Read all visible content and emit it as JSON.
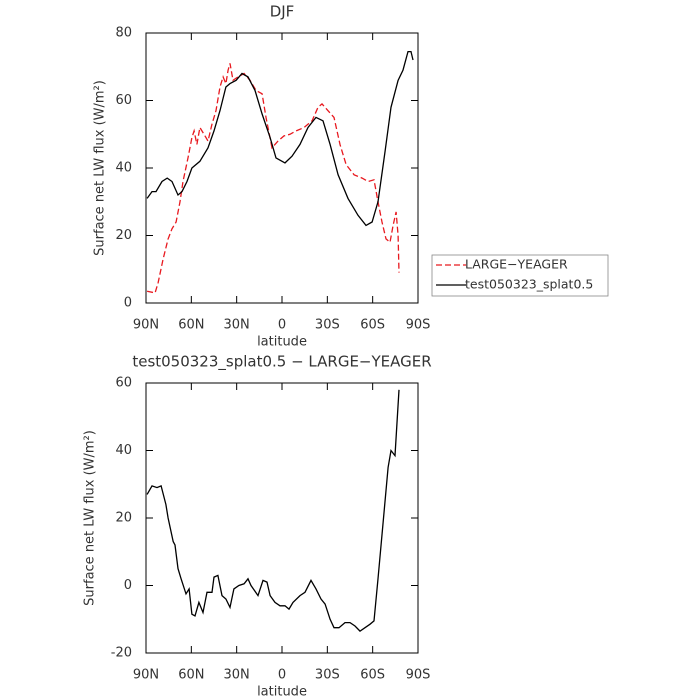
{
  "chart_data": [
    {
      "type": "line",
      "title": "DJF",
      "xlabel": "latitude",
      "ylabel": "Surface net LW flux (W/m²)",
      "xlim": [
        90,
        -90
      ],
      "ylim": [
        0,
        80
      ],
      "xticks": [
        {
          "value": 90,
          "label": "90N"
        },
        {
          "value": 60,
          "label": "60N"
        },
        {
          "value": 30,
          "label": "30N"
        },
        0,
        {
          "value": -30,
          "label": "30S"
        },
        {
          "value": -60,
          "label": "60S"
        },
        {
          "value": -90,
          "label": "90S"
        }
      ],
      "yticks": [
        0,
        20,
        40,
        60,
        80
      ],
      "legend": "right",
      "series": [
        {
          "name": "LARGE−YEAGER",
          "color": "#e8191f",
          "dashed": true,
          "x": [
            89.3,
            84,
            82,
            78.7,
            75.4,
            72.8,
            70.1,
            67.5,
            65.5,
            62.2,
            59.6,
            58.2,
            56.3,
            54.3,
            51.6,
            49,
            46.3,
            43.7,
            41,
            39,
            37.1,
            35.7,
            34.4,
            32.4,
            29.1,
            25.1,
            21.2,
            17.2,
            13.2,
            10.6,
            6.6,
            2.6,
            -1.3,
            -5.3,
            -9.3,
            -14.6,
            -19.9,
            -23.8,
            -26.5,
            -30.4,
            -34.4,
            -38.4,
            -42.4,
            -47.7,
            -53,
            -57,
            -60.9,
            -63.5,
            -66.2,
            -68.8,
            -71.5,
            -73.5,
            -75.5,
            -76.8,
            -77.4
          ],
          "values": [
            3.5,
            3,
            6,
            13,
            19,
            22,
            24,
            30,
            36,
            43,
            49,
            51,
            47,
            52,
            50,
            48,
            53,
            57,
            64,
            67,
            65,
            69,
            71,
            66,
            67,
            68,
            66,
            63,
            62,
            55,
            46,
            48,
            49.5,
            50,
            51,
            52,
            54,
            58,
            59,
            57,
            55,
            47,
            41,
            38,
            37,
            36,
            36.5,
            30,
            24,
            19,
            18,
            23,
            27,
            20,
            9
          ]
        },
        {
          "name": "test050323_splat0.5",
          "color": "#000000",
          "dashed": false,
          "x": [
            89.3,
            86,
            83.4,
            79.4,
            76,
            72.8,
            68.8,
            66.2,
            62.9,
            59.6,
            54.3,
            49,
            45,
            41,
            37.1,
            34.4,
            30.4,
            26.5,
            22.5,
            17.9,
            13.2,
            7.9,
            4,
            -2,
            -6.6,
            -11.9,
            -17.2,
            -22.5,
            -27.1,
            -31.8,
            -37.1,
            -43.7,
            -50.3,
            -55.6,
            -59.6,
            -63.5,
            -68.2,
            -72.1,
            -76.8,
            -80.1,
            -83.4,
            -85.4,
            -86.7
          ],
          "values": [
            31,
            33,
            33,
            36,
            37,
            36,
            32,
            33,
            36,
            40,
            42,
            46,
            51,
            57,
            64,
            65,
            66,
            68,
            67,
            63,
            56,
            49,
            43,
            41.5,
            43.5,
            47,
            52,
            55,
            54,
            47,
            38,
            31,
            26,
            23,
            24,
            30,
            45,
            58,
            66,
            69,
            74.5,
            74.5,
            72
          ]
        }
      ]
    },
    {
      "type": "line",
      "title": "test050323_splat0.5 − LARGE−YEAGER",
      "xlabel": "latitude",
      "ylabel": "Surface net LW flux (W/m²)",
      "xlim": [
        90,
        -90
      ],
      "ylim": [
        -20,
        60
      ],
      "xticks": [
        {
          "value": 90,
          "label": "90N"
        },
        {
          "value": 60,
          "label": "60N"
        },
        {
          "value": 30,
          "label": "30N"
        },
        0,
        {
          "value": -30,
          "label": "30S"
        },
        {
          "value": -60,
          "label": "60S"
        },
        {
          "value": -90,
          "label": "90S"
        }
      ],
      "yticks": [
        -20,
        0,
        20,
        40,
        60
      ],
      "series": [
        {
          "color": "#000000",
          "dashed": false,
          "x": [
            89.3,
            86,
            82.7,
            80,
            76.8,
            75.4,
            72,
            70.8,
            68.8,
            66.8,
            63.5,
            61.5,
            59.6,
            57.6,
            55,
            52.3,
            49.6,
            46.3,
            45,
            42.4,
            39.7,
            37.1,
            34.4,
            31.8,
            28.5,
            25.1,
            22.5,
            20.5,
            15.9,
            12.6,
            9.9,
            7.9,
            4.6,
            1.3,
            -2,
            -4.6,
            -7.3,
            -11.9,
            -15.2,
            -19.2,
            -22.5,
            -25.8,
            -28.5,
            -31.8,
            -34.4,
            -37.7,
            -41.7,
            -45,
            -48.3,
            -51.6,
            -54.9,
            -58.2,
            -60.9,
            -63.5,
            -66.8,
            -70.2,
            -72.1,
            -74.8,
            -77.4
          ],
          "values": [
            27,
            29.5,
            29,
            29.5,
            24,
            20,
            13,
            12,
            5,
            2,
            -2.5,
            -1,
            -8.5,
            -9,
            -5,
            -8,
            -2,
            -2,
            2.5,
            3,
            -3,
            -4,
            -6.5,
            -1,
            0,
            0.5,
            2,
            0,
            -3,
            1.5,
            1,
            -3,
            -5,
            -6,
            -6,
            -7,
            -5,
            -3,
            -2,
            1.5,
            -1,
            -4,
            -5.5,
            -10,
            -12.5,
            -12.5,
            -11,
            -11,
            -12,
            -13.5,
            -12.5,
            -11.5,
            -10.5,
            2,
            18,
            35,
            40,
            38.5,
            58
          ]
        }
      ]
    }
  ]
}
